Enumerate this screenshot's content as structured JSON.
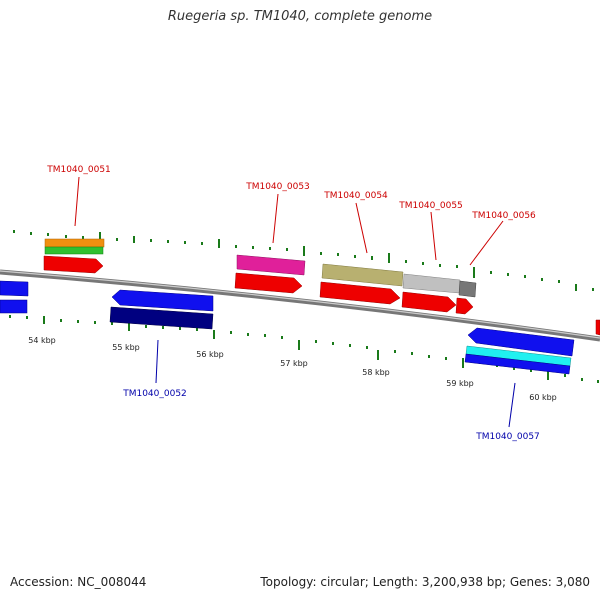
{
  "header": {
    "title": "Ruegeria sp. TM1040, complete genome"
  },
  "footer": {
    "accession": "Accession: NC_008044",
    "summary": "Topology: circular; Length: 3,200,938 bp; Genes: 3,080"
  },
  "scale_labels": [
    "54 kbp",
    "55 kbp",
    "56 kbp",
    "57 kbp",
    "58 kbp",
    "59 kbp",
    "60 kbp"
  ],
  "gene_labels": {
    "g0051": "TM1040_0051",
    "g0052": "TM1040_0052",
    "g0053": "TM1040_0053",
    "g0054": "TM1040_0054",
    "g0055": "TM1040_0055",
    "g0056": "TM1040_0056",
    "g0057": "TM1040_0057"
  },
  "colors": {
    "forward_label": "#cc0000",
    "reverse_label": "#0000aa",
    "backbone": "#777777",
    "tick": "#1a7a1a",
    "cds_red": "#ee0000",
    "blue": "#1010ee",
    "navy": "#000080",
    "magenta": "#e0209a",
    "olive": "#b8b070",
    "silver": "#c0c0c0",
    "orange": "#f09010",
    "green": "#30c030",
    "cyan": "#20f0f0"
  }
}
